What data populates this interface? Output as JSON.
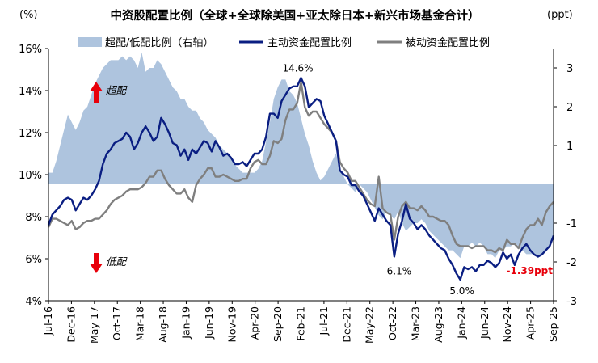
{
  "chart_data": {
    "type": "line",
    "title": "中资股配置比例（全球+全球除美国+亚太除日本+新兴市场基金合计）",
    "left_unit": "(%)",
    "right_unit": "(ppt)",
    "ylim_left": [
      4,
      16
    ],
    "ylim_right": [
      -3,
      3.5
    ],
    "left_ticks": [
      "4%",
      "6%",
      "8%",
      "10%",
      "12%",
      "14%",
      "16%"
    ],
    "right_ticks": [
      "-3",
      "-2",
      "-1",
      "1",
      "2",
      "3"
    ],
    "x_tick_labels": [
      "Jul-16",
      "Dec-16",
      "May-17",
      "Oct-17",
      "Mar-18",
      "Aug-18",
      "Jan-19",
      "Jun-19",
      "Nov-19",
      "Apr-20",
      "Sep-20",
      "Feb-21",
      "Jul-21",
      "Dec-21",
      "May-22",
      "Oct-22",
      "Mar-23",
      "Aug-23",
      "Jan-24",
      "Jun-24",
      "Nov-24",
      "Apr-25",
      "Sep-25"
    ],
    "legend": {
      "area": "超配/低配比例（右轴）",
      "active": "主动资金配置比例",
      "passive": "被动资金配置比例"
    },
    "annotations": {
      "overweight": "超配",
      "underweight": "低配",
      "peak": "14.6%",
      "oct22_low": "6.1%",
      "jan24_low": "5.0%",
      "latest": "-1.39ppt"
    },
    "colors": {
      "area": "#aec4de",
      "active": "#0a1e82",
      "passive": "#7f7f7f",
      "arrow": "#e8000b",
      "latest_label": "#e8000b"
    },
    "x_start": "2016-07",
    "series": [
      {
        "name": "主动资金配置比例",
        "axis": "left",
        "values": [
          7.6,
          8.1,
          8.3,
          8.5,
          8.8,
          8.9,
          8.8,
          8.3,
          8.6,
          8.9,
          8.8,
          9.0,
          9.3,
          9.7,
          10.5,
          11.0,
          11.2,
          11.5,
          11.6,
          11.7,
          12.0,
          11.8,
          11.2,
          11.5,
          12.0,
          12.3,
          12.0,
          11.6,
          11.8,
          12.7,
          12.4,
          12.0,
          11.5,
          11.4,
          10.9,
          11.2,
          10.7,
          11.2,
          11.0,
          11.3,
          11.6,
          11.5,
          11.1,
          11.6,
          11.3,
          10.9,
          11.0,
          10.8,
          10.5,
          10.5,
          10.6,
          10.4,
          10.7,
          11.0,
          11.0,
          11.2,
          11.8,
          12.9,
          12.9,
          12.7,
          13.5,
          13.8,
          14.1,
          14.2,
          14.2,
          14.6,
          14.2,
          13.2,
          13.4,
          13.6,
          13.5,
          12.8,
          12.4,
          12.0,
          11.6,
          10.2,
          10.0,
          9.9,
          9.5,
          9.5,
          9.2,
          9.0,
          8.6,
          8.2,
          7.8,
          8.4,
          8.1,
          7.8,
          7.6,
          6.1,
          7.2,
          7.8,
          8.6,
          7.9,
          7.7,
          7.4,
          7.6,
          7.4,
          7.1,
          6.9,
          6.7,
          6.5,
          6.4,
          6.0,
          5.7,
          5.3,
          5.0,
          5.6,
          5.5,
          5.6,
          5.4,
          5.7,
          5.7,
          5.9,
          5.8,
          5.6,
          5.8,
          6.3,
          6.0,
          6.2,
          5.7,
          6.2,
          6.5,
          6.7,
          6.4,
          6.2,
          6.1,
          6.2,
          6.4,
          6.6,
          7.1
        ]
      },
      {
        "name": "被动资金配置比例",
        "axis": "left",
        "values": [
          7.5,
          7.9,
          7.9,
          7.8,
          7.7,
          7.6,
          7.8,
          7.4,
          7.5,
          7.7,
          7.8,
          7.8,
          7.9,
          7.9,
          8.1,
          8.3,
          8.6,
          8.8,
          8.9,
          9.0,
          9.2,
          9.3,
          9.3,
          9.3,
          9.4,
          9.6,
          9.9,
          9.9,
          10.2,
          10.2,
          9.8,
          9.5,
          9.3,
          9.1,
          9.1,
          9.3,
          8.9,
          8.7,
          9.5,
          9.8,
          10.0,
          10.3,
          10.3,
          9.9,
          9.9,
          10.0,
          9.9,
          9.8,
          9.7,
          9.7,
          9.8,
          9.8,
          10.3,
          10.6,
          10.7,
          10.5,
          10.5,
          10.9,
          11.6,
          11.5,
          11.7,
          12.6,
          13.1,
          13.1,
          13.4,
          14.4,
          13.2,
          12.8,
          13.0,
          13.0,
          12.7,
          12.4,
          12.2,
          12.0,
          11.6,
          10.6,
          10.3,
          10.1,
          9.7,
          9.7,
          9.4,
          9.1,
          8.8,
          8.6,
          8.5,
          9.9,
          8.4,
          8.2,
          8.1,
          6.9,
          8.0,
          8.5,
          8.7,
          8.4,
          8.4,
          8.3,
          8.5,
          8.3,
          8.0,
          8.0,
          7.9,
          7.8,
          7.8,
          7.6,
          7.1,
          6.7,
          6.6,
          6.6,
          6.6,
          6.5,
          6.6,
          6.6,
          6.6,
          6.4,
          6.4,
          6.3,
          6.5,
          6.4,
          6.9,
          6.7,
          6.7,
          6.5,
          7.0,
          7.4,
          7.6,
          7.6,
          7.9,
          7.6,
          8.2,
          8.5,
          8.7
        ]
      },
      {
        "name": "超配/低配比例（右轴）",
        "axis": "right",
        "values": [
          0.3,
          0.3,
          0.6,
          1.0,
          1.4,
          1.8,
          1.6,
          1.4,
          1.6,
          1.9,
          2.0,
          2.3,
          2.6,
          2.8,
          3.0,
          3.1,
          3.2,
          3.2,
          3.2,
          3.3,
          3.2,
          3.3,
          3.2,
          3.0,
          3.4,
          2.9,
          3.0,
          3.0,
          3.2,
          3.1,
          2.9,
          2.7,
          2.5,
          2.4,
          2.2,
          2.2,
          2.0,
          1.9,
          1.9,
          1.7,
          1.6,
          1.4,
          1.3,
          1.2,
          1.0,
          0.9,
          0.8,
          0.7,
          0.5,
          0.4,
          0.3,
          0.3,
          0.3,
          0.3,
          0.4,
          0.6,
          1.1,
          1.6,
          2.2,
          2.5,
          2.7,
          2.7,
          2.4,
          2.3,
          2.1,
          1.7,
          1.3,
          1.0,
          0.6,
          0.3,
          0.1,
          0.2,
          0.4,
          0.6,
          0.8,
          0.4,
          0.2,
          0.0,
          -0.1,
          -0.2,
          0.0,
          -0.1,
          -0.2,
          -0.4,
          -0.6,
          -0.8,
          -0.9,
          -0.7,
          -0.8,
          -0.9,
          -0.7,
          -1.0,
          -1.2,
          -1.1,
          -1.0,
          -1.0,
          -0.9,
          -1.0,
          -1.2,
          -1.3,
          -1.4,
          -1.5,
          -1.6,
          -1.7,
          -1.7,
          -1.8,
          -1.9,
          -1.6,
          -1.6,
          -1.5,
          -1.6,
          -1.5,
          -1.6,
          -1.8,
          -1.8,
          -1.9,
          -1.7,
          -1.7,
          -1.6,
          -1.6,
          -1.5,
          -1.6,
          -1.7,
          -1.8,
          -1.8,
          -1.8,
          -1.9,
          -1.8,
          -1.7,
          -1.6,
          -1.39
        ]
      }
    ]
  }
}
